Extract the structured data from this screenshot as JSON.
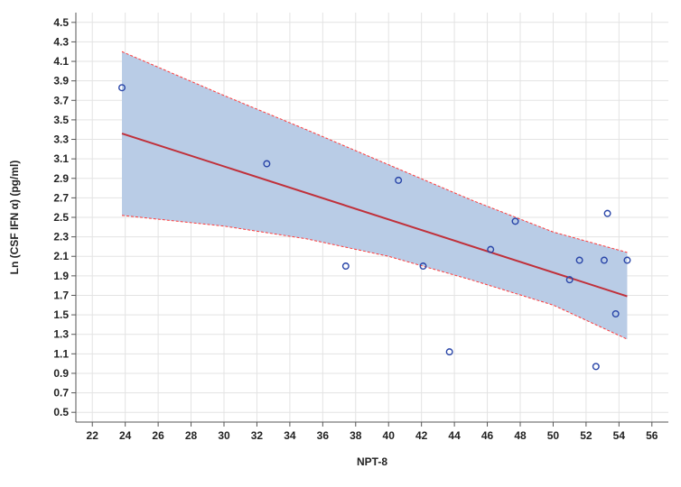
{
  "chart_data": {
    "type": "scatter",
    "xlabel": "NPT-8",
    "ylabel": "Ln (CSF IFN α) (pg/ml)",
    "xlim": [
      21,
      57
    ],
    "ylim": [
      0.4,
      4.6
    ],
    "xticks": [
      22,
      24,
      26,
      28,
      30,
      32,
      34,
      36,
      38,
      40,
      42,
      44,
      46,
      48,
      50,
      52,
      54,
      56
    ],
    "yticks": [
      0.5,
      0.7,
      0.9,
      1.1,
      1.3,
      1.5,
      1.7,
      1.9,
      2.1,
      2.3,
      2.5,
      2.7,
      2.9,
      3.1,
      3.3,
      3.5,
      3.7,
      3.9,
      4.1,
      4.3,
      4.5
    ],
    "grid": true,
    "points": [
      {
        "x": 23.8,
        "y": 3.83
      },
      {
        "x": 32.6,
        "y": 3.05
      },
      {
        "x": 37.4,
        "y": 2.0
      },
      {
        "x": 40.6,
        "y": 2.88
      },
      {
        "x": 42.1,
        "y": 2.0
      },
      {
        "x": 43.7,
        "y": 1.12
      },
      {
        "x": 46.2,
        "y": 2.17
      },
      {
        "x": 47.7,
        "y": 2.46
      },
      {
        "x": 51.0,
        "y": 1.86
      },
      {
        "x": 51.6,
        "y": 2.06
      },
      {
        "x": 52.6,
        "y": 0.97
      },
      {
        "x": 53.1,
        "y": 2.06
      },
      {
        "x": 53.3,
        "y": 2.54
      },
      {
        "x": 53.8,
        "y": 1.51
      },
      {
        "x": 54.5,
        "y": 2.06
      }
    ],
    "fit_line": {
      "x": [
        23.8,
        54.5
      ],
      "y": [
        3.36,
        1.69
      ]
    },
    "confidence_band": {
      "x": [
        23.8,
        30,
        35,
        40,
        45,
        50,
        54.5
      ],
      "upper": [
        4.2,
        3.75,
        3.4,
        3.04,
        2.68,
        2.35,
        2.14
      ],
      "lower": [
        2.52,
        2.41,
        2.28,
        2.1,
        1.86,
        1.6,
        1.25
      ]
    },
    "colors": {
      "band_fill": "#b9cce6",
      "band_edge": "#ff3b3b",
      "fit_line": "#c0303a",
      "marker": "#2945a8"
    }
  }
}
